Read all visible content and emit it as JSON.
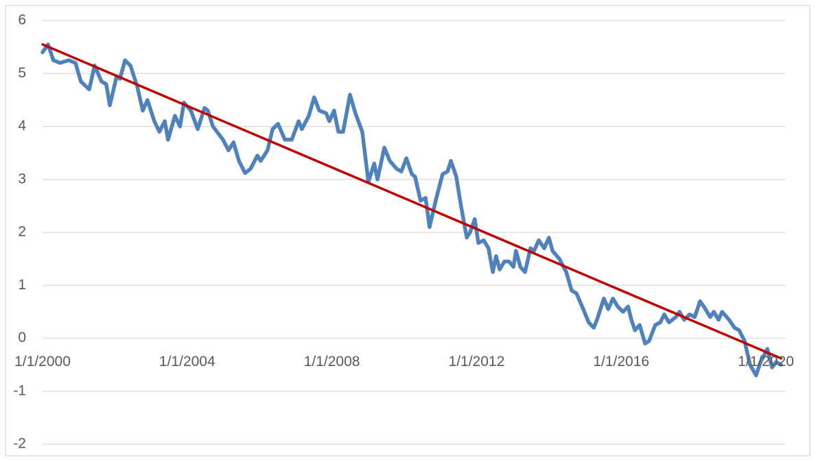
{
  "chart_data": {
    "type": "line",
    "x": [
      2000.0,
      2000.15,
      2000.3,
      2000.49,
      2000.72,
      2000.91,
      2001.06,
      2001.29,
      2001.44,
      2001.63,
      2001.76,
      2001.86,
      2002.05,
      2002.14,
      2002.28,
      2002.43,
      2002.62,
      2002.77,
      2002.9,
      2003.09,
      2003.23,
      2003.38,
      2003.47,
      2003.66,
      2003.8,
      2003.91,
      2004.1,
      2004.29,
      2004.48,
      2004.57,
      2004.71,
      2004.99,
      2005.14,
      2005.28,
      2005.43,
      2005.6,
      2005.75,
      2005.94,
      2006.03,
      2006.22,
      2006.36,
      2006.51,
      2006.7,
      2006.89,
      2007.08,
      2007.17,
      2007.36,
      2007.51,
      2007.65,
      2007.84,
      2007.93,
      2008.06,
      2008.18,
      2008.31,
      2008.5,
      2008.65,
      2008.84,
      2009.01,
      2009.17,
      2009.26,
      2009.45,
      2009.6,
      2009.79,
      2009.92,
      2010.06,
      2010.21,
      2010.3,
      2010.45,
      2010.59,
      2010.7,
      2010.87,
      2011.06,
      2011.2,
      2011.29,
      2011.44,
      2011.57,
      2011.73,
      2011.82,
      2011.95,
      2012.05,
      2012.2,
      2012.33,
      2012.45,
      2012.54,
      2012.64,
      2012.77,
      2012.9,
      2013.02,
      2013.09,
      2013.21,
      2013.34,
      2013.49,
      2013.59,
      2013.72,
      2013.87,
      2014.0,
      2014.1,
      2014.29,
      2014.48,
      2014.63,
      2014.76,
      2014.95,
      2015.1,
      2015.24,
      2015.33,
      2015.52,
      2015.64,
      2015.77,
      2015.9,
      2016.05,
      2016.19,
      2016.28,
      2016.38,
      2016.51,
      2016.66,
      2016.77,
      2016.94,
      2017.08,
      2017.19,
      2017.32,
      2017.51,
      2017.61,
      2017.74,
      2017.89,
      2018.03,
      2018.18,
      2018.33,
      2018.46,
      2018.56,
      2018.69,
      2018.79,
      2018.98,
      2019.13,
      2019.26,
      2019.41,
      2019.56,
      2019.73,
      2019.85,
      2020.04,
      2020.17,
      2020.28,
      2020.42
    ],
    "series": [
      {
        "color": "#4f81bd",
        "values": [
          5.4,
          5.55,
          5.25,
          5.2,
          5.25,
          5.2,
          4.85,
          4.7,
          5.15,
          4.85,
          4.8,
          4.4,
          4.95,
          4.9,
          5.25,
          5.15,
          4.75,
          4.3,
          4.5,
          4.1,
          3.9,
          4.1,
          3.75,
          4.2,
          4.0,
          4.45,
          4.3,
          3.95,
          4.35,
          4.3,
          4.0,
          3.75,
          3.55,
          3.7,
          3.35,
          3.12,
          3.2,
          3.45,
          3.35,
          3.55,
          3.95,
          4.05,
          3.75,
          3.75,
          4.1,
          3.95,
          4.2,
          4.55,
          4.3,
          4.25,
          4.1,
          4.3,
          3.9,
          3.9,
          4.6,
          4.25,
          3.9,
          2.95,
          3.3,
          3.0,
          3.6,
          3.35,
          3.2,
          3.15,
          3.4,
          3.1,
          3.05,
          2.6,
          2.65,
          2.1,
          2.6,
          3.1,
          3.15,
          3.35,
          3.05,
          2.5,
          1.9,
          2.0,
          2.25,
          1.8,
          1.85,
          1.7,
          1.25,
          1.55,
          1.3,
          1.45,
          1.45,
          1.35,
          1.65,
          1.35,
          1.25,
          1.7,
          1.65,
          1.85,
          1.7,
          1.9,
          1.65,
          1.5,
          1.25,
          0.9,
          0.85,
          0.55,
          0.3,
          0.2,
          0.35,
          0.75,
          0.55,
          0.75,
          0.6,
          0.5,
          0.6,
          0.35,
          0.15,
          0.25,
          -0.1,
          -0.05,
          0.25,
          0.3,
          0.45,
          0.3,
          0.4,
          0.5,
          0.35,
          0.45,
          0.4,
          0.7,
          0.55,
          0.4,
          0.5,
          0.35,
          0.5,
          0.35,
          0.2,
          0.15,
          -0.05,
          -0.5,
          -0.7,
          -0.45,
          -0.2,
          -0.55,
          -0.45,
          -0.5
        ]
      },
      {
        "color": "#c00000",
        "x": [
          2000.0,
          2020.42
        ],
        "values": [
          5.55,
          -0.38
        ]
      }
    ],
    "xlim": [
      2000,
      2020.55
    ],
    "xticks": [
      {
        "value": 2000,
        "label": "1/1/2000"
      },
      {
        "value": 2004,
        "label": "1/1/2004"
      },
      {
        "value": 2008,
        "label": "1/1/2008"
      },
      {
        "value": 2012,
        "label": "1/1/2012"
      },
      {
        "value": 2016,
        "label": "1/1/2016"
      },
      {
        "value": 2020,
        "label": "1/1/2020"
      }
    ],
    "ylim": [
      -2,
      6
    ],
    "yticks": [
      -2,
      -1,
      0,
      1,
      2,
      3,
      4,
      5,
      6
    ],
    "grid": true
  }
}
